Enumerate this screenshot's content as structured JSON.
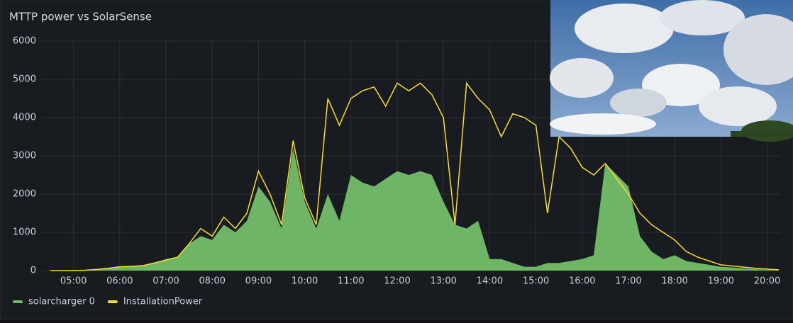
{
  "chart_data": {
    "type": "area-line",
    "title": "MTTP power vs SolarSense",
    "x": [
      "04:30",
      "04:45",
      "05:00",
      "05:15",
      "05:30",
      "05:45",
      "06:00",
      "06:15",
      "06:30",
      "06:45",
      "07:00",
      "07:15",
      "07:30",
      "07:45",
      "08:00",
      "08:15",
      "08:30",
      "08:45",
      "09:00",
      "09:15",
      "09:30",
      "09:45",
      "10:00",
      "10:15",
      "10:30",
      "10:45",
      "11:00",
      "11:15",
      "11:30",
      "11:45",
      "12:00",
      "12:15",
      "12:30",
      "12:45",
      "13:00",
      "13:15",
      "13:30",
      "13:45",
      "14:00",
      "14:15",
      "14:30",
      "14:45",
      "15:00",
      "15:15",
      "15:30",
      "15:45",
      "16:00",
      "16:15",
      "16:30",
      "16:45",
      "17:00",
      "17:15",
      "17:30",
      "17:45",
      "18:00",
      "18:15",
      "18:30",
      "18:45",
      "19:00",
      "19:15",
      "19:30",
      "19:45",
      "20:00",
      "20:15"
    ],
    "series": [
      {
        "name": "solarcharger 0",
        "color": "#73bf69",
        "values": [
          0,
          0,
          0,
          10,
          30,
          60,
          100,
          110,
          130,
          200,
          280,
          350,
          700,
          900,
          800,
          1200,
          1000,
          1300,
          2200,
          1800,
          1100,
          3200,
          1800,
          1100,
          2000,
          1300,
          2500,
          2300,
          2200,
          2400,
          2600,
          2500,
          2600,
          2500,
          1800,
          1200,
          1100,
          1300,
          300,
          300,
          200,
          100,
          100,
          200,
          200,
          250,
          300,
          400,
          2800,
          2500,
          2200,
          900,
          500,
          300,
          400,
          250,
          200,
          150,
          100,
          80,
          60,
          40,
          20,
          10
        ]
      },
      {
        "name": "InstallationPower",
        "color": "#fade2a",
        "values": [
          0,
          0,
          0,
          10,
          30,
          60,
          100,
          110,
          130,
          200,
          280,
          350,
          700,
          1100,
          900,
          1400,
          1100,
          1500,
          2600,
          2000,
          1200,
          3400,
          1900,
          1200,
          4500,
          3800,
          4500,
          4700,
          4800,
          4300,
          4900,
          4700,
          4900,
          4600,
          4000,
          1200,
          4900,
          4500,
          4200,
          3500,
          4100,
          4000,
          3800,
          1500,
          3500,
          3200,
          2700,
          2500,
          2800,
          2400,
          2000,
          1500,
          1200,
          1000,
          800,
          500,
          350,
          250,
          150,
          120,
          90,
          60,
          40,
          20
        ]
      }
    ],
    "xlim": [
      "04:18",
      "20:17"
    ],
    "xticks": [
      "05:00",
      "06:00",
      "07:00",
      "08:00",
      "09:00",
      "10:00",
      "11:00",
      "12:00",
      "13:00",
      "14:00",
      "15:00",
      "16:00",
      "17:00",
      "18:00",
      "19:00",
      "20:00"
    ],
    "ylim": [
      0,
      6000
    ],
    "yticks": [
      0,
      1000,
      2000,
      3000,
      4000,
      5000,
      6000
    ],
    "grid": true
  }
}
